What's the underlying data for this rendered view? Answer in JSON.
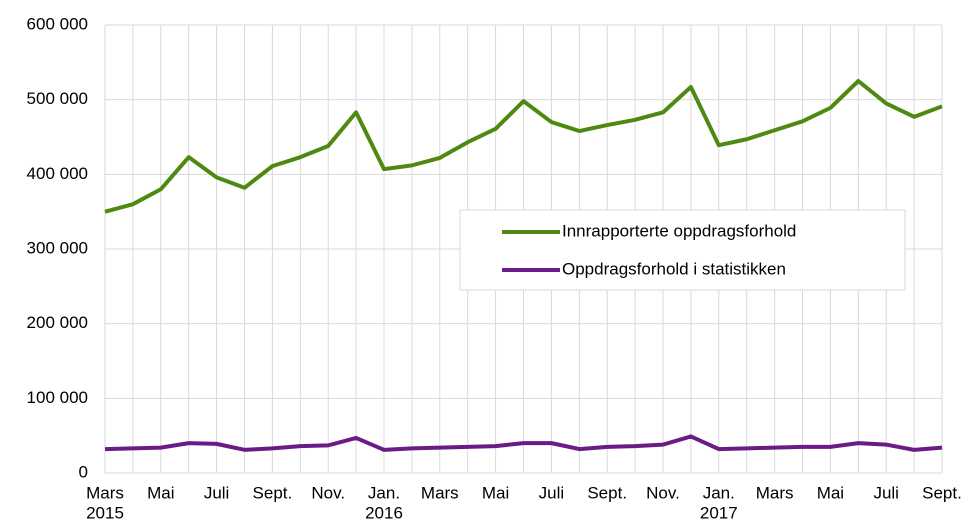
{
  "chart_data": {
    "type": "line",
    "categories": [
      "Mars",
      null,
      "Mai",
      null,
      "Juli",
      null,
      "Sept.",
      null,
      "Nov.",
      null,
      "Jan.",
      null,
      "Mars",
      null,
      "Mai",
      null,
      "Juli",
      null,
      "Sept.",
      null,
      "Nov.",
      null,
      "Jan.",
      null,
      "Mars",
      null,
      "Mai",
      null,
      "Juli",
      null,
      "Sept."
    ],
    "category_years": [
      "2015",
      null,
      null,
      null,
      null,
      null,
      null,
      null,
      null,
      null,
      "2016",
      null,
      null,
      null,
      null,
      null,
      null,
      null,
      null,
      null,
      null,
      null,
      "2017",
      null,
      null,
      null,
      null,
      null,
      null,
      null,
      null
    ],
    "series": [
      {
        "name": "Innrapporterte oppdragsforhold",
        "color": "#4e8a12",
        "values": [
          350000,
          360000,
          380000,
          423000,
          396000,
          382000,
          411000,
          423000,
          438000,
          483000,
          407000,
          412000,
          422000,
          443000,
          461000,
          498000,
          470000,
          458000,
          466000,
          473000,
          483000,
          517000,
          439000,
          447000,
          459000,
          471000,
          489000,
          525000,
          495000,
          477000,
          491000
        ]
      },
      {
        "name": "Oppdragsforhold i statistikken",
        "color": "#6a1b86",
        "values": [
          32000,
          33000,
          34000,
          40000,
          39000,
          31000,
          33000,
          36000,
          37000,
          47000,
          31000,
          33000,
          34000,
          35000,
          36000,
          40000,
          40000,
          32000,
          35000,
          36000,
          38000,
          49000,
          32000,
          33000,
          34000,
          35000,
          35000,
          40000,
          38000,
          31000,
          34000
        ]
      }
    ],
    "ylim": [
      0,
      600000
    ],
    "yticks": [
      0,
      {
        "value": 100000,
        "label": "100 000"
      },
      {
        "value": 200000,
        "label": "200 000"
      },
      {
        "value": 300000,
        "label": "300 000"
      },
      {
        "value": 400000,
        "label": "400 000"
      },
      {
        "value": 500000,
        "label": "500 000"
      },
      {
        "value": 600000,
        "label": "600 000"
      }
    ],
    "grid": true,
    "legend": "center-right"
  }
}
